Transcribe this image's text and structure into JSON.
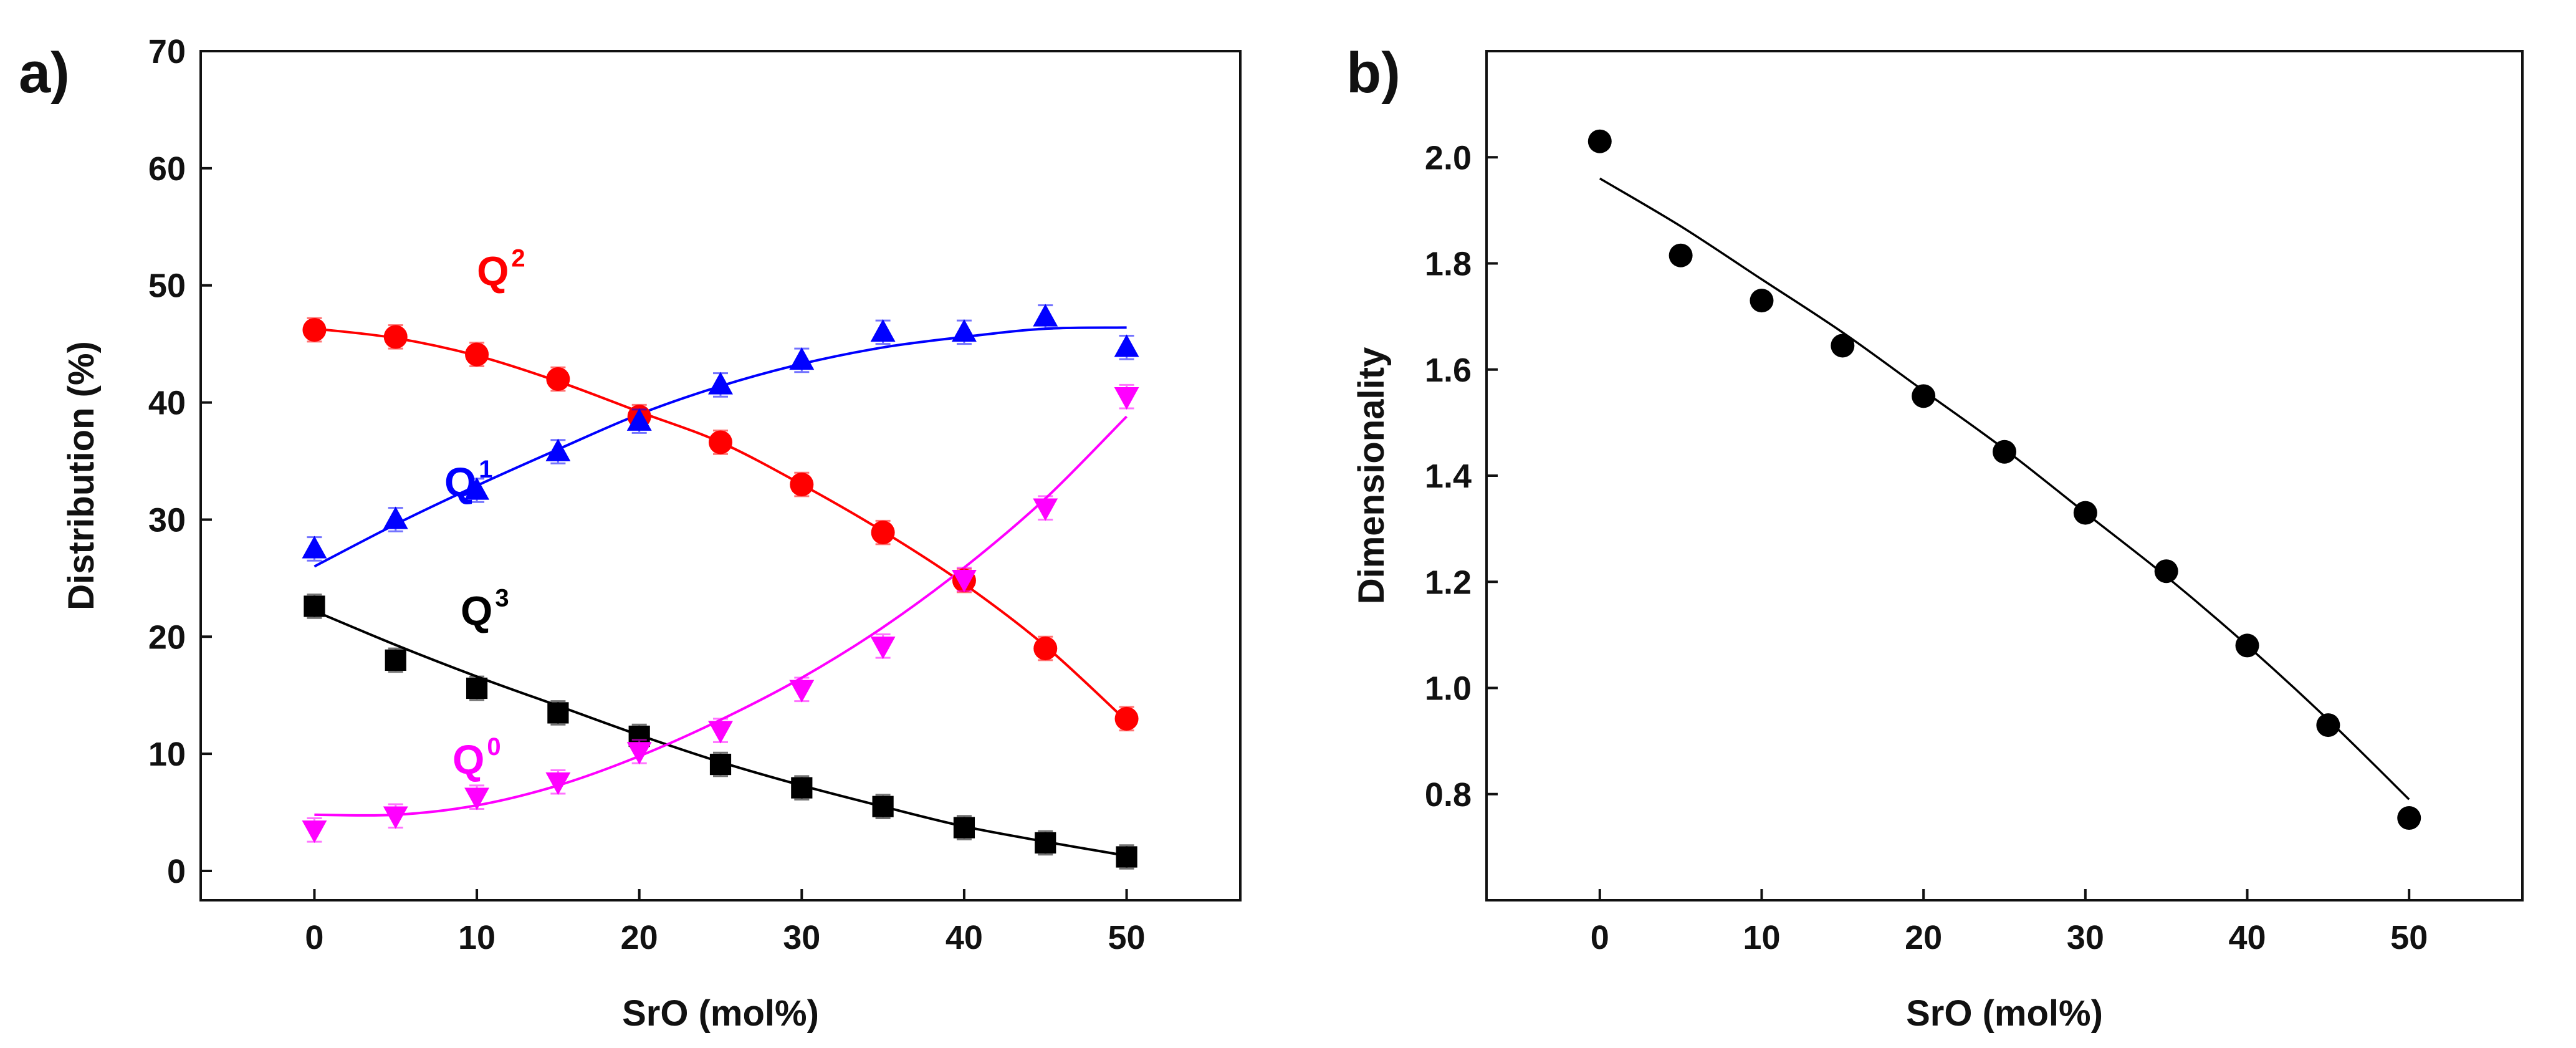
{
  "chart_data": [
    {
      "type": "scatter",
      "panel_label": "a)",
      "xlabel": "SrO (mol%)",
      "ylabel": "Distribution (%)",
      "xlim": [
        -7,
        57
      ],
      "ylim": [
        -2.5,
        70
      ],
      "xticks": [
        "0",
        "10",
        "20",
        "30",
        "40",
        "50"
      ],
      "yticks": [
        "0",
        "10",
        "20",
        "30",
        "40",
        "50",
        "60",
        "70"
      ],
      "x": [
        0,
        5,
        10,
        15,
        20,
        25,
        30,
        35,
        40,
        45,
        50
      ],
      "series": [
        {
          "name": "Q2",
          "label_main": "Q",
          "label_sup": "2",
          "color": "#ff0000",
          "marker": "circle",
          "values": [
            46.2,
            45.6,
            44.1,
            42.0,
            38.8,
            36.6,
            33.0,
            28.9,
            24.8,
            19.0,
            13.0
          ],
          "errors": [
            1.0,
            1.0,
            1.0,
            1.0,
            1.0,
            1.0,
            1.0,
            1.0,
            1.0,
            1.0,
            1.0
          ],
          "fit": [
            46.3,
            45.5,
            44.0,
            41.8,
            39.2,
            36.6,
            33.0,
            29.0,
            24.5,
            19.2,
            12.8
          ],
          "label_at": [
            10,
            50
          ]
        },
        {
          "name": "Q1",
          "label_main": "Q",
          "label_sup": "1",
          "color": "#0000ff",
          "marker": "triangle-up",
          "values": [
            27.5,
            30.0,
            32.5,
            35.8,
            38.4,
            41.5,
            43.6,
            46.0,
            46.0,
            47.3,
            44.7
          ],
          "errors": [
            1.0,
            1.0,
            1.0,
            1.0,
            1.0,
            1.0,
            1.0,
            1.0,
            1.0,
            1.0,
            1.0
          ],
          "fit": [
            26.0,
            29.6,
            32.9,
            36.0,
            39.0,
            41.4,
            43.3,
            44.7,
            45.6,
            46.3,
            46.4
          ],
          "label_at": [
            8,
            32
          ]
        },
        {
          "name": "Q3",
          "label_main": "Q",
          "label_sup": "3",
          "color": "#000000",
          "marker": "square",
          "values": [
            22.6,
            18.0,
            15.6,
            13.5,
            11.5,
            9.1,
            7.1,
            5.5,
            3.7,
            2.4,
            1.2
          ],
          "errors": [
            1.0,
            1.0,
            1.0,
            1.0,
            1.0,
            1.0,
            1.0,
            1.0,
            1.0,
            1.0,
            1.0
          ],
          "fit": [
            22.2,
            19.3,
            16.6,
            14.1,
            11.6,
            9.3,
            7.3,
            5.5,
            3.8,
            2.5,
            1.3
          ],
          "label_at": [
            9,
            21
          ]
        },
        {
          "name": "Q0",
          "label_main": "Q",
          "label_sup": "0",
          "color": "#ff00ff",
          "marker": "triangle-down",
          "values": [
            3.5,
            4.7,
            6.3,
            7.6,
            10.2,
            12.0,
            15.5,
            19.2,
            24.9,
            31.0,
            40.5
          ],
          "errors": [
            1.0,
            1.0,
            1.0,
            1.0,
            1.0,
            1.0,
            1.0,
            1.0,
            1.0,
            1.0,
            1.0
          ],
          "fit": [
            4.8,
            4.8,
            5.6,
            7.3,
            9.8,
            12.9,
            16.5,
            20.8,
            25.9,
            31.8,
            38.8
          ],
          "label_at": [
            8.5,
            8.3
          ]
        }
      ]
    },
    {
      "type": "scatter",
      "panel_label": "b)",
      "xlabel": "SrO (mol%)",
      "ylabel": "Dimensionality",
      "xlim": [
        -7,
        57
      ],
      "ylim": [
        0.6,
        2.2
      ],
      "xticks": [
        "0",
        "10",
        "20",
        "30",
        "40",
        "50"
      ],
      "yticks": [
        "0.8",
        "1.0",
        "1.2",
        "1.4",
        "1.6",
        "1.8",
        "2.0"
      ],
      "x": [
        0,
        5,
        10,
        15,
        20,
        25,
        30,
        35,
        40,
        45,
        50
      ],
      "series": [
        {
          "name": "Dimensionality",
          "color": "#000000",
          "marker": "circle",
          "values": [
            2.03,
            1.815,
            1.73,
            1.645,
            1.55,
            1.445,
            1.33,
            1.22,
            1.08,
            0.93,
            0.755
          ],
          "fit": [
            1.96,
            1.87,
            1.77,
            1.67,
            1.56,
            1.45,
            1.33,
            1.21,
            1.08,
            0.94,
            0.79
          ]
        }
      ]
    }
  ]
}
